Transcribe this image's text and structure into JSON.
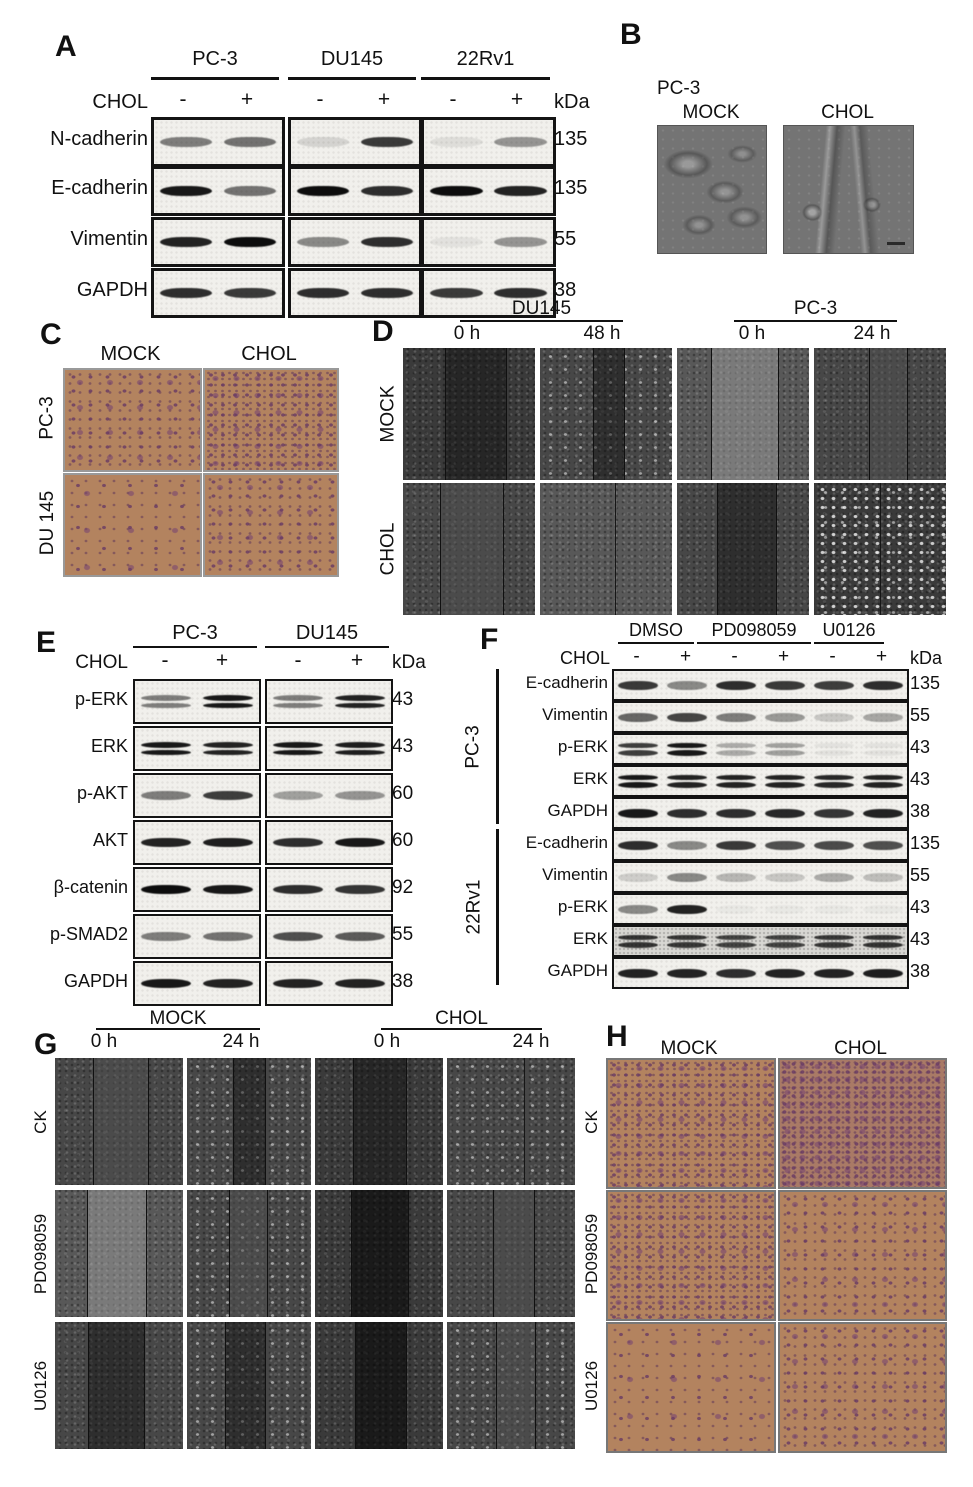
{
  "panels": {
    "A": {
      "letter": "A",
      "cell_lines": [
        "PC-3",
        "DU145",
        "22Rv1"
      ],
      "chol_label": "CHOL",
      "signs": [
        "-",
        "+"
      ],
      "kda_header": "kDa",
      "rows": [
        {
          "protein": "N-cadherin",
          "kda": "135",
          "lanes": [
            [
              0.5,
              0.55
            ],
            [
              0.12,
              0.8
            ],
            [
              0.08,
              0.4
            ]
          ]
        },
        {
          "protein": "E-cadherin",
          "kda": "135",
          "lanes": [
            [
              0.95,
              0.55
            ],
            [
              1,
              0.85
            ],
            [
              1,
              0.9
            ]
          ]
        },
        {
          "protein": "Vimentin",
          "kda": "55",
          "lanes": [
            [
              0.9,
              1
            ],
            [
              0.45,
              0.85
            ],
            [
              0.06,
              0.4
            ]
          ]
        },
        {
          "protein": "GAPDH",
          "kda": "38",
          "lanes": [
            [
              0.85,
              0.8
            ],
            [
              0.85,
              0.85
            ],
            [
              0.8,
              0.85
            ]
          ]
        }
      ]
    },
    "B": {
      "letter": "B",
      "cell_line": "PC-3",
      "columns": [
        "MOCK",
        "CHOL"
      ]
    },
    "C": {
      "letter": "C",
      "columns": [
        "MOCK",
        "CHOL"
      ],
      "row_labels": [
        "PC-3",
        "DU 145"
      ]
    },
    "D": {
      "letter": "D",
      "groups": [
        {
          "cell_line": "DU145",
          "times": [
            "0 h",
            "48 h"
          ]
        },
        {
          "cell_line": "PC-3",
          "times": [
            "0 h",
            "24 h"
          ]
        }
      ],
      "row_labels": [
        "MOCK",
        "CHOL"
      ]
    },
    "E": {
      "letter": "E",
      "cell_lines": [
        "PC-3",
        "DU145"
      ],
      "chol_label": "CHOL",
      "signs": [
        "-",
        "+",
        "-",
        "+"
      ],
      "kda_header": "kDa",
      "rows": [
        {
          "protein": "p-ERK",
          "kda": "43",
          "lanes": [
            [
              0.5,
              0.95
            ],
            [
              0.5,
              0.9
            ]
          ]
        },
        {
          "protein": "ERK",
          "kda": "43",
          "lanes": [
            [
              0.95,
              0.9
            ],
            [
              0.95,
              0.92
            ]
          ]
        },
        {
          "protein": "p-AKT",
          "kda": "60",
          "lanes": [
            [
              0.5,
              0.78
            ],
            [
              0.35,
              0.4
            ]
          ]
        },
        {
          "protein": "AKT",
          "kda": "60",
          "lanes": [
            [
              0.9,
              0.92
            ],
            [
              0.85,
              0.95
            ]
          ]
        },
        {
          "protein": "β-catenin",
          "kda": "92",
          "lanes": [
            [
              1,
              0.95
            ],
            [
              0.85,
              0.82
            ]
          ]
        },
        {
          "protein": "p-SMAD2",
          "kda": "55",
          "lanes": [
            [
              0.5,
              0.55
            ],
            [
              0.7,
              0.65
            ]
          ]
        },
        {
          "protein": "GAPDH",
          "kda": "38",
          "lanes": [
            [
              0.95,
              0.9
            ],
            [
              0.9,
              0.9
            ]
          ]
        }
      ]
    },
    "F": {
      "letter": "F",
      "treatments": [
        "DMSO",
        "PD098059",
        "U0126"
      ],
      "chol_label": "CHOL",
      "signs": [
        "-",
        "+",
        "-",
        "+",
        "-",
        "+"
      ],
      "kda_header": "kDa",
      "groups": [
        {
          "cell_line": "PC-3",
          "rows": [
            {
              "protein": "E-cadherin",
              "kda": "135",
              "lanes": [
                0.8,
                0.45,
                0.85,
                0.8,
                0.78,
                0.85
              ]
            },
            {
              "protein": "Vimentin",
              "kda": "55",
              "lanes": [
                0.6,
                0.75,
                0.5,
                0.38,
                0.18,
                0.32
              ]
            },
            {
              "protein": "p-ERK",
              "kda": "43",
              "lanes": [
                0.78,
                0.95,
                0.3,
                0.35,
                0.06,
                0.06
              ]
            },
            {
              "protein": "ERK",
              "kda": "43",
              "lanes": [
                0.95,
                0.9,
                0.9,
                0.9,
                0.88,
                0.9
              ]
            },
            {
              "protein": "GAPDH",
              "kda": "38",
              "lanes": [
                0.95,
                0.85,
                0.85,
                0.88,
                0.82,
                0.9
              ]
            }
          ]
        },
        {
          "cell_line": "22Rv1",
          "rows": [
            {
              "protein": "E-cadherin",
              "kda": "135",
              "lanes": [
                0.85,
                0.45,
                0.8,
                0.7,
                0.72,
                0.7
              ]
            },
            {
              "protein": "Vimentin",
              "kda": "55",
              "lanes": [
                0.15,
                0.45,
                0.25,
                0.18,
                0.3,
                0.22
              ]
            },
            {
              "protein": "p-ERK",
              "kda": "43",
              "lanes": [
                0.45,
                0.9,
                0.03,
                0.03,
                0.03,
                0.03
              ]
            },
            {
              "protein": "ERK",
              "kda": "43",
              "lanes": [
                0.8,
                0.78,
                0.72,
                0.72,
                0.78,
                0.8
              ]
            },
            {
              "protein": "GAPDH",
              "kda": "38",
              "lanes": [
                0.9,
                0.9,
                0.85,
                0.9,
                0.9,
                0.92
              ]
            }
          ]
        }
      ]
    },
    "G": {
      "letter": "G",
      "conditions": [
        {
          "name": "MOCK",
          "times": [
            "0 h",
            "24 h"
          ]
        },
        {
          "name": "CHOL",
          "times": [
            "0 h",
            "24 h"
          ]
        }
      ],
      "row_labels": [
        "CK",
        "PD098059",
        "U0126"
      ]
    },
    "H": {
      "letter": "H",
      "columns": [
        "MOCK",
        "CHOL"
      ],
      "row_labels": [
        "CK",
        "PD098059",
        "U0126"
      ]
    }
  }
}
